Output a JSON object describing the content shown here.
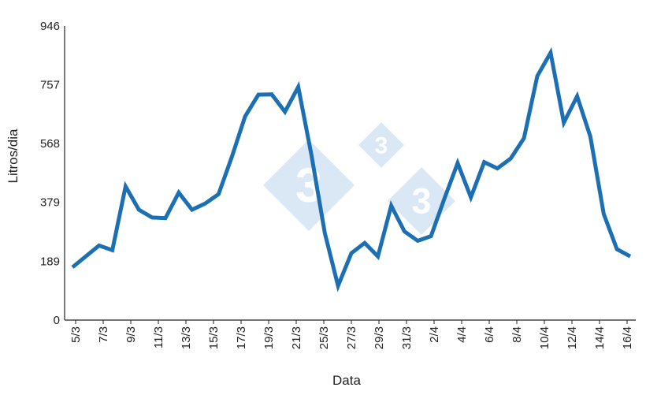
{
  "chart_data": {
    "type": "line",
    "xlabel": "Data",
    "ylabel": "Litros/dia",
    "ylim": [
      0,
      946
    ],
    "yticks": [
      0,
      189,
      379,
      568,
      757,
      946
    ],
    "ytick_labels": [
      "0",
      "189",
      "379",
      "568",
      "757",
      "946"
    ],
    "xtick_labels": [
      "5/3",
      "7/3",
      "9/3",
      "11/3",
      "13/3",
      "15/3",
      "17/3",
      "19/3",
      "21/3",
      "25/3",
      "27/3",
      "29/3",
      "31/3",
      "2/4",
      "4/4",
      "6/4",
      "8/4",
      "10/4",
      "12/4",
      "14/4",
      "16/4"
    ],
    "grid": false,
    "legend": "none",
    "line_color": "#1d6fb3",
    "watermark_color": "#cddff0",
    "watermark_text": "3",
    "series": [
      {
        "values": [
          170,
          205,
          240,
          225,
          430,
          355,
          330,
          328,
          410,
          355,
          375,
          405,
          525,
          655,
          725,
          726,
          670,
          750,
          530,
          280,
          110,
          215,
          248,
          205,
          368,
          285,
          255,
          270,
          390,
          505,
          395,
          508,
          488,
          520,
          585,
          785,
          860,
          635,
          720,
          590,
          342,
          228,
          205
        ]
      }
    ]
  }
}
